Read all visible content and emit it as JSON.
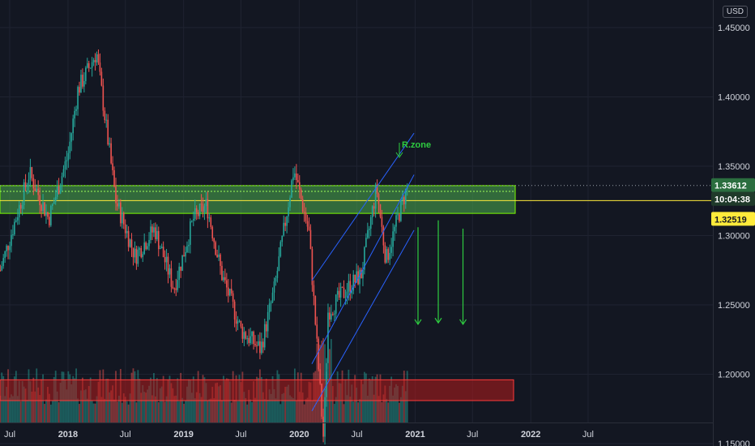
{
  "currency_button": "USD",
  "annotations": {
    "resistance_label": "R.zone"
  },
  "price_tags": {
    "last_price": "1.33612",
    "countdown": "10:04:38",
    "close_line": "1.32519"
  },
  "colors": {
    "background": "#131722",
    "grid": "#1f2331",
    "up": "#26a69a",
    "down": "#ef5350",
    "resistance_zone": "#4caf50",
    "support_zone": "#b71c1c",
    "channel": "#2962ff",
    "arrows": "#2ecc40",
    "close_line": "#ffeb3b"
  },
  "chart_data": {
    "type": "candlestick",
    "y_axis": {
      "ticks": [
        "1.45000",
        "1.40000",
        "1.35000",
        "1.30000",
        "1.25000",
        "1.20000",
        "1.15000"
      ],
      "range": [
        1.108,
        1.468
      ]
    },
    "x_axis": {
      "ticks": [
        "Jul",
        "2018",
        "Jul",
        "2019",
        "Jul",
        "2020",
        "Jul",
        "2021",
        "Jul",
        "2022",
        "Jul"
      ]
    },
    "price_path": [
      [
        "2017-06-01",
        1.275
      ],
      [
        "2017-09-01",
        1.345
      ],
      [
        "2017-11-01",
        1.312
      ],
      [
        "2018-01-01",
        1.358
      ],
      [
        "2018-02-01",
        1.405
      ],
      [
        "2018-04-01",
        1.432
      ],
      [
        "2018-06-01",
        1.325
      ],
      [
        "2018-08-01",
        1.285
      ],
      [
        "2018-10-01",
        1.305
      ],
      [
        "2018-12-01",
        1.262
      ],
      [
        "2019-02-01",
        1.312
      ],
      [
        "2019-03-15",
        1.322
      ],
      [
        "2019-05-01",
        1.272
      ],
      [
        "2019-07-01",
        1.232
      ],
      [
        "2019-09-01",
        1.218
      ],
      [
        "2019-10-15",
        1.262
      ],
      [
        "2019-12-15",
        1.348
      ],
      [
        "2020-02-01",
        1.302
      ],
      [
        "2020-03-18",
        1.152
      ],
      [
        "2020-04-01",
        1.245
      ],
      [
        "2020-06-01",
        1.262
      ],
      [
        "2020-07-15",
        1.272
      ],
      [
        "2020-09-01",
        1.335
      ],
      [
        "2020-10-01",
        1.282
      ],
      [
        "2020-11-10",
        1.315
      ],
      [
        "2020-12-08",
        1.336
      ]
    ],
    "resistance_zone": {
      "from": "2017-06-01",
      "to": "2021-12-01",
      "low": 1.316,
      "high": 1.336
    },
    "support_zone": {
      "from": "2017-06-01",
      "to": "2021-12-01",
      "low": 1.181,
      "high": 1.196
    },
    "channel": {
      "upper": [
        [
          "2020-04-01",
          1.285
        ],
        [
          "2020-12-08",
          1.368
        ]
      ],
      "lower": [
        [
          "2020-04-01",
          1.191
        ],
        [
          "2020-12-08",
          1.298
        ]
      ],
      "middle": [
        [
          "2020-04-01",
          1.225
        ],
        [
          "2020-12-08",
          1.338
        ]
      ]
    },
    "down_arrows": [
      {
        "date": "2021-01-10",
        "from": 1.306,
        "to": 1.236
      },
      {
        "date": "2021-03-15",
        "from": 1.311,
        "to": 1.237
      },
      {
        "date": "2021-06-01",
        "from": 1.305,
        "to": 1.236
      }
    ],
    "last_price": 1.33612,
    "close_line": 1.32519
  }
}
